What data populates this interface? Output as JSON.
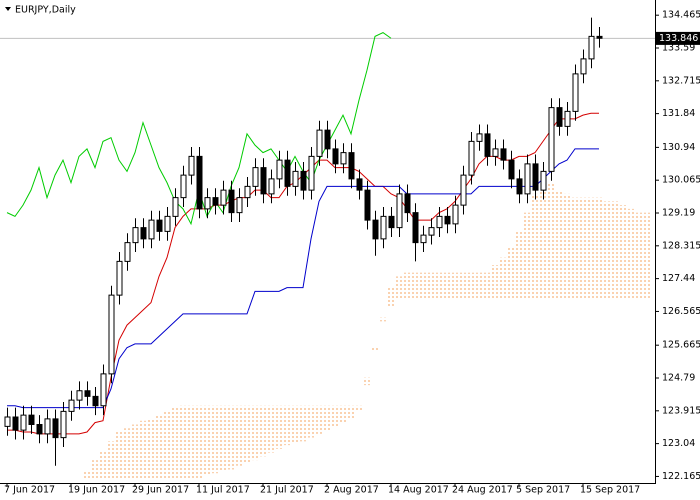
{
  "chart_data": {
    "type": "candlestick",
    "title": "EURJPY,Daily",
    "categories": [
      "7 Jun 2017",
      null,
      null,
      null,
      null,
      null,
      null,
      null,
      "19 Jun 2017",
      null,
      null,
      null,
      null,
      null,
      null,
      null,
      "29 Jun 2017",
      null,
      null,
      null,
      null,
      null,
      null,
      null,
      "11 Jul 2017",
      null,
      null,
      null,
      null,
      null,
      null,
      null,
      "21 Jul 2017",
      null,
      null,
      null,
      null,
      null,
      null,
      null,
      "2 Aug 2017",
      null,
      null,
      null,
      null,
      null,
      null,
      null,
      "14 Aug 2017",
      null,
      null,
      null,
      null,
      null,
      null,
      null,
      "24 Aug 2017",
      null,
      null,
      null,
      null,
      null,
      null,
      null,
      "5 Sep 2017",
      null,
      null,
      null,
      null,
      null,
      null,
      null,
      "15 Sep 2017",
      null,
      null,
      null,
      null,
      null,
      null,
      null,
      null
    ],
    "open": [
      123.5,
      123.75,
      123.4,
      123.8,
      123.55,
      123.3,
      123.7,
      123.2,
      123.9,
      124.2,
      124.45,
      124.3,
      124.05,
      124.9,
      127.0,
      127.9,
      128.4,
      128.8,
      128.5,
      129.0,
      128.7,
      129.1,
      129.6,
      130.2,
      130.7,
      129.3,
      129.6,
      129.4,
      129.8,
      129.2,
      129.6,
      129.9,
      130.4,
      129.7,
      130.1,
      130.6,
      129.9,
      130.3,
      129.8,
      130.7,
      131.4,
      130.9,
      130.5,
      130.8,
      130.1,
      129.8,
      129.0,
      128.5,
      129.1,
      128.8,
      129.7,
      129.2,
      128.4,
      128.6,
      128.8,
      129.1,
      128.9,
      129.4,
      130.2,
      131.1,
      131.3,
      130.7,
      130.9,
      130.6,
      130.1,
      129.7,
      130.5,
      129.8,
      130.3,
      132.0,
      131.5,
      131.9,
      132.9,
      133.3,
      133.9,
      null,
      null,
      null,
      null,
      null,
      null
    ],
    "high": [
      124.0,
      124.0,
      124.05,
      124.05,
      123.8,
      123.95,
      123.95,
      124.15,
      124.45,
      124.7,
      124.7,
      124.55,
      125.15,
      127.25,
      128.15,
      128.65,
      129.05,
      129.05,
      129.25,
      129.25,
      129.35,
      129.85,
      130.45,
      130.95,
      130.95,
      129.85,
      129.85,
      130.05,
      130.05,
      129.85,
      130.15,
      130.65,
      130.65,
      130.35,
      130.85,
      130.85,
      130.55,
      130.55,
      130.95,
      131.65,
      131.65,
      131.15,
      131.05,
      131.05,
      130.35,
      130.05,
      129.25,
      129.35,
      129.35,
      129.95,
      129.95,
      129.45,
      128.85,
      129.05,
      129.35,
      129.35,
      129.65,
      130.45,
      131.35,
      131.55,
      131.55,
      131.15,
      131.15,
      130.85,
      130.35,
      130.75,
      130.75,
      130.55,
      132.25,
      132.25,
      132.15,
      133.15,
      133.55,
      134.4,
      134.15,
      null,
      null,
      null,
      null,
      null,
      null
    ],
    "low": [
      123.25,
      123.15,
      123.15,
      123.3,
      123.05,
      123.05,
      122.45,
      122.95,
      123.65,
      123.95,
      124.05,
      123.8,
      123.8,
      124.65,
      126.75,
      127.65,
      128.15,
      128.25,
      128.25,
      128.45,
      128.45,
      128.85,
      129.35,
      129.95,
      129.05,
      129.05,
      129.15,
      129.15,
      128.95,
      128.95,
      129.35,
      129.65,
      129.45,
      129.45,
      129.85,
      129.65,
      129.65,
      129.55,
      129.55,
      130.45,
      130.65,
      130.25,
      130.25,
      129.85,
      129.55,
      128.75,
      128.05,
      128.25,
      128.55,
      128.55,
      128.95,
      127.9,
      128.15,
      128.35,
      128.55,
      128.65,
      128.65,
      129.15,
      129.95,
      130.85,
      130.45,
      130.45,
      130.35,
      129.85,
      129.45,
      129.45,
      129.55,
      129.55,
      130.05,
      131.25,
      131.25,
      131.65,
      132.65,
      133.05,
      133.6,
      null,
      null,
      null,
      null,
      null,
      null
    ],
    "close": [
      123.75,
      123.4,
      123.8,
      123.55,
      123.3,
      123.7,
      123.2,
      123.9,
      124.2,
      124.45,
      124.3,
      124.05,
      124.9,
      127.0,
      127.9,
      128.4,
      128.8,
      128.5,
      129.0,
      128.7,
      129.1,
      129.6,
      130.2,
      130.7,
      129.3,
      129.6,
      129.4,
      129.8,
      129.2,
      129.6,
      129.9,
      130.4,
      129.7,
      130.1,
      130.6,
      129.9,
      130.3,
      129.8,
      130.7,
      131.4,
      130.9,
      130.5,
      130.8,
      130.1,
      129.8,
      129.0,
      128.5,
      129.1,
      128.8,
      129.7,
      129.2,
      128.4,
      128.6,
      128.8,
      129.1,
      128.9,
      129.4,
      130.2,
      131.1,
      131.3,
      130.7,
      130.9,
      130.6,
      130.1,
      129.7,
      130.5,
      129.8,
      130.3,
      132.0,
      131.5,
      131.9,
      132.9,
      133.3,
      133.9,
      133.85,
      null,
      null,
      null,
      null,
      null,
      null
    ],
    "bull_color": "#ffffff",
    "bear_color": "#000000",
    "lines": [
      {
        "color": "#d40000",
        "values": [
          123.4,
          123.4,
          123.35,
          123.35,
          123.3,
          123.3,
          123.3,
          123.3,
          123.3,
          123.3,
          123.35,
          123.6,
          123.65,
          124.8,
          125.8,
          126.2,
          126.4,
          126.6,
          126.8,
          127.5,
          128.0,
          128.8,
          129.1,
          129.3,
          129.3,
          129.3,
          129.4,
          129.4,
          129.5,
          129.6,
          129.6,
          129.8,
          129.8,
          129.6,
          129.6,
          129.9,
          130.0,
          130.2,
          130.4,
          130.6,
          130.6,
          130.4,
          130.4,
          130.4,
          130.3,
          130.1,
          129.9,
          129.9,
          129.7,
          129.6,
          129.3,
          129.0,
          129.0,
          129.0,
          129.2,
          129.3,
          129.5,
          129.8,
          130.1,
          130.5,
          130.7,
          130.7,
          130.6,
          130.6,
          130.7,
          130.7,
          130.8,
          131.1,
          131.4,
          131.7,
          131.7,
          131.7,
          131.8,
          131.85,
          131.85,
          null,
          null,
          null,
          null,
          null,
          null
        ]
      },
      {
        "color": "#0000cc",
        "values": [
          124.05,
          124.05,
          124.0,
          124.0,
          124.0,
          124.0,
          124.0,
          124.0,
          124.0,
          124.0,
          124.0,
          124.0,
          124.0,
          124.5,
          125.3,
          125.6,
          125.7,
          125.7,
          125.7,
          125.9,
          126.1,
          126.3,
          126.5,
          126.5,
          126.5,
          126.5,
          126.5,
          126.5,
          126.5,
          126.5,
          126.5,
          127.1,
          127.1,
          127.1,
          127.1,
          127.2,
          127.2,
          127.2,
          128.5,
          129.5,
          129.9,
          129.9,
          129.9,
          129.9,
          129.9,
          129.9,
          129.9,
          129.9,
          129.9,
          129.9,
          129.7,
          129.7,
          129.7,
          129.7,
          129.7,
          129.7,
          129.7,
          129.7,
          129.7,
          129.9,
          129.9,
          129.9,
          129.9,
          129.9,
          129.9,
          129.9,
          129.9,
          130.1,
          130.3,
          130.5,
          130.6,
          130.9,
          130.9,
          130.9,
          130.9,
          null,
          null,
          null,
          null,
          null,
          null
        ]
      },
      {
        "color": "#00cc00",
        "values": [
          129.2,
          129.1,
          129.4,
          129.8,
          130.4,
          129.6,
          130.2,
          130.6,
          130.0,
          130.7,
          130.9,
          130.4,
          131.1,
          131.2,
          130.6,
          130.3,
          130.8,
          131.6,
          131.0,
          130.4,
          130.0,
          129.5,
          129.3,
          128.9,
          129.8,
          129.1,
          129.5,
          129.2,
          129.9,
          130.4,
          131.3,
          131.0,
          130.8,
          130.9,
          130.6,
          130.3,
          130.7,
          130.3,
          130.0,
          130.6,
          131.0,
          131.4,
          131.8,
          131.3,
          132.2,
          133.0,
          133.9,
          134.0,
          133.85,
          null,
          null,
          null,
          null,
          null,
          null,
          null,
          null,
          null,
          null,
          null,
          null,
          null,
          null,
          null,
          null,
          null,
          null,
          null,
          null,
          null,
          null,
          null,
          null,
          null,
          null,
          null,
          null,
          null,
          null,
          null,
          null
        ]
      }
    ],
    "cloud": {
      "color": "#f4a460",
      "upper": [
        null,
        null,
        null,
        null,
        null,
        null,
        null,
        null,
        null,
        null,
        122.3,
        122.6,
        122.85,
        123.1,
        123.35,
        123.45,
        123.55,
        123.65,
        123.7,
        123.8,
        123.9,
        124.0,
        124.05,
        124.05,
        124.05,
        124.05,
        124.05,
        124.05,
        124.05,
        124.05,
        124.05,
        124.05,
        124.05,
        124.05,
        124.05,
        124.05,
        124.05,
        124.05,
        124.05,
        124.05,
        124.05,
        124.05,
        124.05,
        124.05,
        124.05,
        124.8,
        125.6,
        126.4,
        127.2,
        127.5,
        127.6,
        127.6,
        127.6,
        127.6,
        127.6,
        127.6,
        127.6,
        127.6,
        127.6,
        127.6,
        127.6,
        127.8,
        128.0,
        128.3,
        128.7,
        129.2,
        129.7,
        130.0,
        130.0,
        129.8,
        129.7,
        129.6,
        129.6,
        129.6,
        129.6,
        129.5,
        129.5,
        129.4,
        129.3,
        129.2,
        129.2
      ],
      "lower": [
        null,
        null,
        null,
        null,
        null,
        null,
        null,
        null,
        null,
        null,
        122.1,
        122.1,
        122.1,
        122.1,
        122.1,
        122.1,
        122.1,
        122.1,
        122.1,
        122.1,
        122.1,
        122.1,
        122.1,
        122.1,
        122.1,
        122.2,
        122.25,
        122.3,
        122.35,
        122.45,
        122.5,
        122.6,
        122.7,
        122.8,
        122.9,
        123.0,
        123.05,
        123.1,
        123.2,
        123.3,
        123.4,
        123.5,
        123.6,
        123.7,
        123.9,
        124.6,
        125.5,
        126.3,
        126.7,
        126.9,
        126.9,
        126.9,
        126.9,
        126.9,
        126.9,
        126.9,
        126.9,
        126.9,
        126.9,
        126.9,
        126.9,
        126.9,
        126.9,
        126.9,
        126.9,
        126.9,
        126.9,
        126.9,
        126.9,
        126.9,
        126.9,
        126.9,
        126.9,
        126.9,
        126.9,
        126.9,
        126.9,
        126.9,
        126.9,
        126.9,
        126.9
      ]
    },
    "last_price": 133.846,
    "price_line_color": "#c0c0c0",
    "ylim": [
      122.07,
      134.87
    ],
    "yticks": [
      134.465,
      133.59,
      132.715,
      131.84,
      130.94,
      130.065,
      129.19,
      128.315,
      127.44,
      126.565,
      125.665,
      124.79,
      123.915,
      123.04,
      122.165
    ]
  }
}
